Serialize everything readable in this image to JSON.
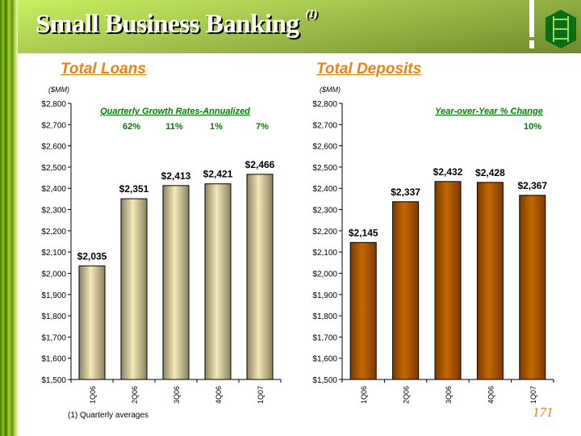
{
  "header": {
    "title": "Small Business Banking",
    "footnote_ref": "(1)"
  },
  "footnote": "(1) Quarterly averages",
  "page_number": "171",
  "colors": {
    "loans_bar": "#e6dcaa",
    "deposits_bar": "#b85c00",
    "annotation": "#008000",
    "section": "#f0820f"
  },
  "chart_data": [
    {
      "type": "bar",
      "title": "Total Loans",
      "ylabel": "($MM)",
      "ylim": [
        1500,
        2800
      ],
      "yticks": [
        "$1,500",
        "$1,600",
        "$1,700",
        "$1,800",
        "$1,900",
        "$2,000",
        "$2,100",
        "$2,200",
        "$2,300",
        "$2,400",
        "$2,500",
        "$2,600",
        "$2,700",
        "$2,800"
      ],
      "categories": [
        "1Q06",
        "2Q06",
        "3Q06",
        "4Q06",
        "1Q07"
      ],
      "values": [
        2035,
        2351,
        2413,
        2421,
        2466
      ],
      "labels": [
        "$2,035",
        "$2,351",
        "$2,413",
        "$2,421",
        "$2,466"
      ],
      "annotation_title": "Quarterly Growth Rates-Annualized",
      "annotations": [
        "62%",
        "11%",
        "1%",
        "7%"
      ]
    },
    {
      "type": "bar",
      "title": "Total Deposits",
      "ylabel": "($MM)",
      "ylim": [
        1500,
        2800
      ],
      "yticks": [
        "$1,500",
        "$1,600",
        "$1,700",
        "$1,800",
        "$1,900",
        "$2,000",
        "$2,100",
        "$2,200",
        "$2,300",
        "$2,400",
        "$2,500",
        "$2,600",
        "$2,700",
        "$2,800"
      ],
      "categories": [
        "1Q06",
        "2Q06",
        "3Q06",
        "4Q06",
        "1Q07"
      ],
      "values": [
        2145,
        2337,
        2432,
        2428,
        2367
      ],
      "labels": [
        "$2,145",
        "$2,337",
        "$2,432",
        "$2,428",
        "$2,367"
      ],
      "annotation_title": "Year-over-Year % Change",
      "annotations": [
        "10%"
      ]
    }
  ]
}
